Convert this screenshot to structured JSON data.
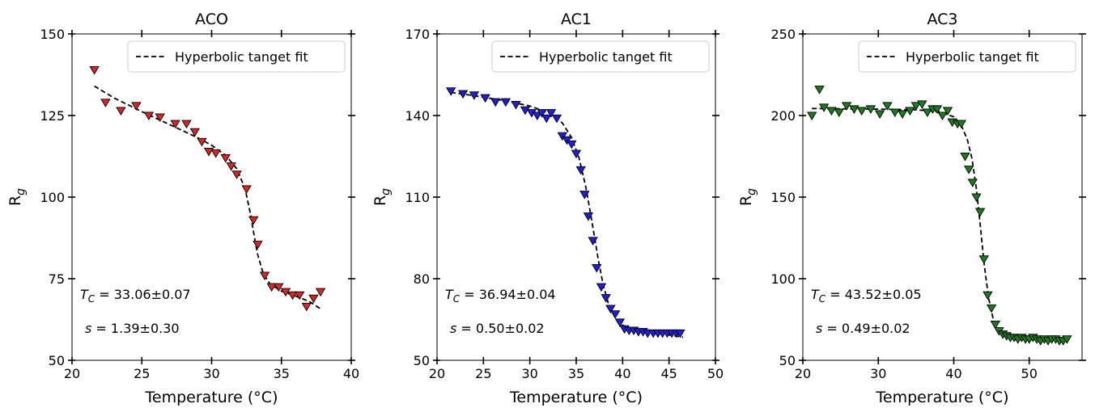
{
  "chart_data": [
    {
      "type": "scatter",
      "title": "ACO",
      "xlabel": "Temperature (°C)",
      "ylabel": "Rg",
      "xlim": [
        20,
        40
      ],
      "ylim": [
        50,
        150
      ],
      "xticks": [
        20,
        25,
        30,
        35,
        40
      ],
      "xtick_labels": [
        "20",
        "25",
        "30",
        "35",
        "40"
      ],
      "yticks": [
        50,
        75,
        100,
        125,
        150
      ],
      "ytick_labels": [
        "50",
        "75",
        "100",
        "125",
        "150"
      ],
      "color": "#d62728",
      "legend": {
        "label": "Hyperbolic tanget fit",
        "position": "top-right"
      },
      "annotations": {
        "tc_prefix": "T",
        "tc_sub": "C",
        "tc_rest": " = 33.06±0.07",
        "s_text": "s = 1.39±0.30"
      },
      "series": [
        {
          "marker": "triangle-down",
          "x": [
            21.6,
            22.4,
            23.5,
            24.6,
            25.5,
            26.3,
            27.4,
            28.2,
            28.8,
            29.3,
            29.8,
            30.3,
            31.0,
            31.4,
            31.8,
            32.5,
            33.0,
            33.3,
            33.8,
            34.3,
            34.8,
            35.3,
            35.8,
            36.3,
            36.8,
            37.3,
            37.8
          ],
          "y": [
            139,
            129,
            126.5,
            128,
            125,
            124.5,
            122.5,
            122.5,
            120,
            117,
            114,
            113.5,
            112,
            109.5,
            107,
            102.5,
            93,
            85.5,
            76,
            72.5,
            72.5,
            71,
            70,
            70,
            66.5,
            69,
            71
          ]
        },
        {
          "name": "Hyperbolic tanget fit",
          "type": "line",
          "x": [
            21.6,
            23,
            25,
            27,
            29,
            30,
            31,
            31.8,
            32.4,
            32.8,
            33.06,
            33.3,
            33.7,
            34.2,
            35,
            36,
            37,
            37.9
          ],
          "y": [
            134,
            130.4,
            126.2,
            122.2,
            118.2,
            115.9,
            112.8,
            108.7,
            102.5,
            94.5,
            87.8,
            82.4,
            76.5,
            73.3,
            71.2,
            69.7,
            68.0,
            65.5
          ]
        }
      ]
    },
    {
      "type": "scatter",
      "title": "AC1",
      "xlabel": "Temperature (°C)",
      "ylabel": "Rg",
      "xlim": [
        20,
        50
      ],
      "ylim": [
        50,
        170
      ],
      "xticks": [
        20,
        25,
        30,
        35,
        40,
        45,
        50
      ],
      "xtick_labels": [
        "20",
        "25",
        "30",
        "35",
        "40",
        "45",
        "50"
      ],
      "yticks": [
        50,
        80,
        110,
        140,
        170
      ],
      "ytick_labels": [
        "50",
        "80",
        "110",
        "140",
        "170"
      ],
      "color": "#1f1fd6",
      "legend": {
        "label": "Hyperbolic tanget fit",
        "position": "top-right"
      },
      "annotations": {
        "tc_prefix": "T",
        "tc_sub": "C",
        "tc_rest": " = 36.94±0.04",
        "s_text": "s = 0.50±0.02"
      },
      "series": [
        {
          "marker": "triangle-down",
          "x": [
            21.5,
            22.8,
            24.0,
            25.2,
            26.3,
            27.4,
            28.5,
            29.5,
            30.2,
            30.8,
            31.3,
            31.8,
            32.3,
            32.9,
            33.5,
            34.0,
            34.5,
            35.0,
            35.5,
            35.9,
            36.3,
            36.8,
            37.2,
            37.7,
            38.2,
            38.7,
            39.2,
            39.7,
            40.2,
            40.7,
            41.2,
            41.7,
            42.2,
            42.7,
            43.3,
            43.8,
            44.3,
            44.8,
            45.3,
            45.8,
            46.2
          ],
          "y": [
            149,
            148,
            147.5,
            146.5,
            145,
            145,
            144,
            142,
            141,
            140,
            141,
            139,
            141,
            139,
            132.5,
            131,
            129.5,
            126,
            120,
            111,
            103,
            94,
            84,
            77,
            73,
            69,
            67,
            64,
            61.5,
            61,
            61,
            60.5,
            60.5,
            60,
            60,
            60,
            60,
            60,
            60,
            60,
            60
          ]
        },
        {
          "name": "Hyperbolic tanget fit",
          "type": "line",
          "x": [
            21.5,
            24,
            27,
            30,
            32,
            33.5,
            34.5,
            35.3,
            36.0,
            36.5,
            36.94,
            37.4,
            37.9,
            38.5,
            39.2,
            40.0,
            41,
            42,
            44,
            46.5
          ],
          "y": [
            148.5,
            147.3,
            145.6,
            143.5,
            141.1,
            137.3,
            131.9,
            124.5,
            114.2,
            104.8,
            96.0,
            86.6,
            77.8,
            70.4,
            65.6,
            62.9,
            61.5,
            60.8,
            59.9,
            58.5
          ]
        }
      ]
    },
    {
      "type": "scatter",
      "title": "AC3",
      "xlabel": "Temperature (°C)",
      "ylabel": "Rg",
      "xlim": [
        20,
        57
      ],
      "ylim": [
        50,
        250
      ],
      "xticks": [
        20,
        30,
        40,
        50
      ],
      "xtick_labels": [
        "20",
        "30",
        "40",
        "50"
      ],
      "yticks": [
        50,
        100,
        150,
        200,
        250
      ],
      "ytick_labels": [
        "50",
        "100",
        "150",
        "200",
        "250"
      ],
      "color": "#1e7a1e",
      "legend": {
        "label": "Hyperbolic tanget fit",
        "position": "top-right"
      },
      "annotations": {
        "tc_prefix": "T",
        "tc_sub": "C",
        "tc_rest": " = 43.52±0.05",
        "s_text": "s = 0.49±0.02"
      },
      "series": [
        {
          "marker": "triangle-down",
          "x": [
            21.2,
            22.2,
            22.8,
            23.8,
            24.8,
            25.8,
            26.8,
            27.8,
            29.0,
            30.2,
            31.2,
            32.2,
            33.2,
            34.2,
            35.0,
            35.8,
            36.5,
            37.2,
            37.8,
            38.5,
            39.2,
            39.8,
            40.5,
            41.0,
            41.5,
            42.0,
            42.5,
            43.0,
            43.5,
            44.0,
            44.5,
            45.0,
            45.5,
            46.0,
            46.5,
            47.0,
            47.5,
            48.0,
            48.5,
            49.0,
            49.5,
            50.0,
            50.5,
            51.0,
            51.5,
            52.0,
            52.5,
            53.0,
            53.5,
            54.0,
            54.5,
            55.0
          ],
          "y": [
            200,
            216,
            205,
            203,
            202,
            206,
            204,
            203,
            204,
            201,
            206,
            202,
            201,
            203,
            206,
            207,
            202,
            204,
            204,
            200,
            203,
            196,
            195,
            195,
            175,
            167,
            159,
            150,
            141,
            112,
            90,
            82,
            72,
            68,
            66,
            65,
            64,
            64,
            63,
            64,
            63,
            63,
            64,
            63,
            62,
            63,
            62,
            63,
            63,
            62,
            62,
            63
          ]
        },
        {
          "name": "Hyperbolic tanget fit",
          "type": "line",
          "x": [
            21.2,
            25,
            30,
            35,
            38,
            40,
            41,
            41.8,
            42.4,
            43.0,
            43.52,
            44.0,
            44.6,
            45.2,
            46.0,
            47,
            48,
            50,
            52,
            55.2
          ],
          "y": [
            204.3,
            204.1,
            203.9,
            203.5,
            202.5,
            199.2,
            194.0,
            185.2,
            173.8,
            154.9,
            132.5,
            110.0,
            88.5,
            75.8,
            67.6,
            64.5,
            63.6,
            63.1,
            62.9,
            62.6
          ]
        }
      ]
    }
  ]
}
